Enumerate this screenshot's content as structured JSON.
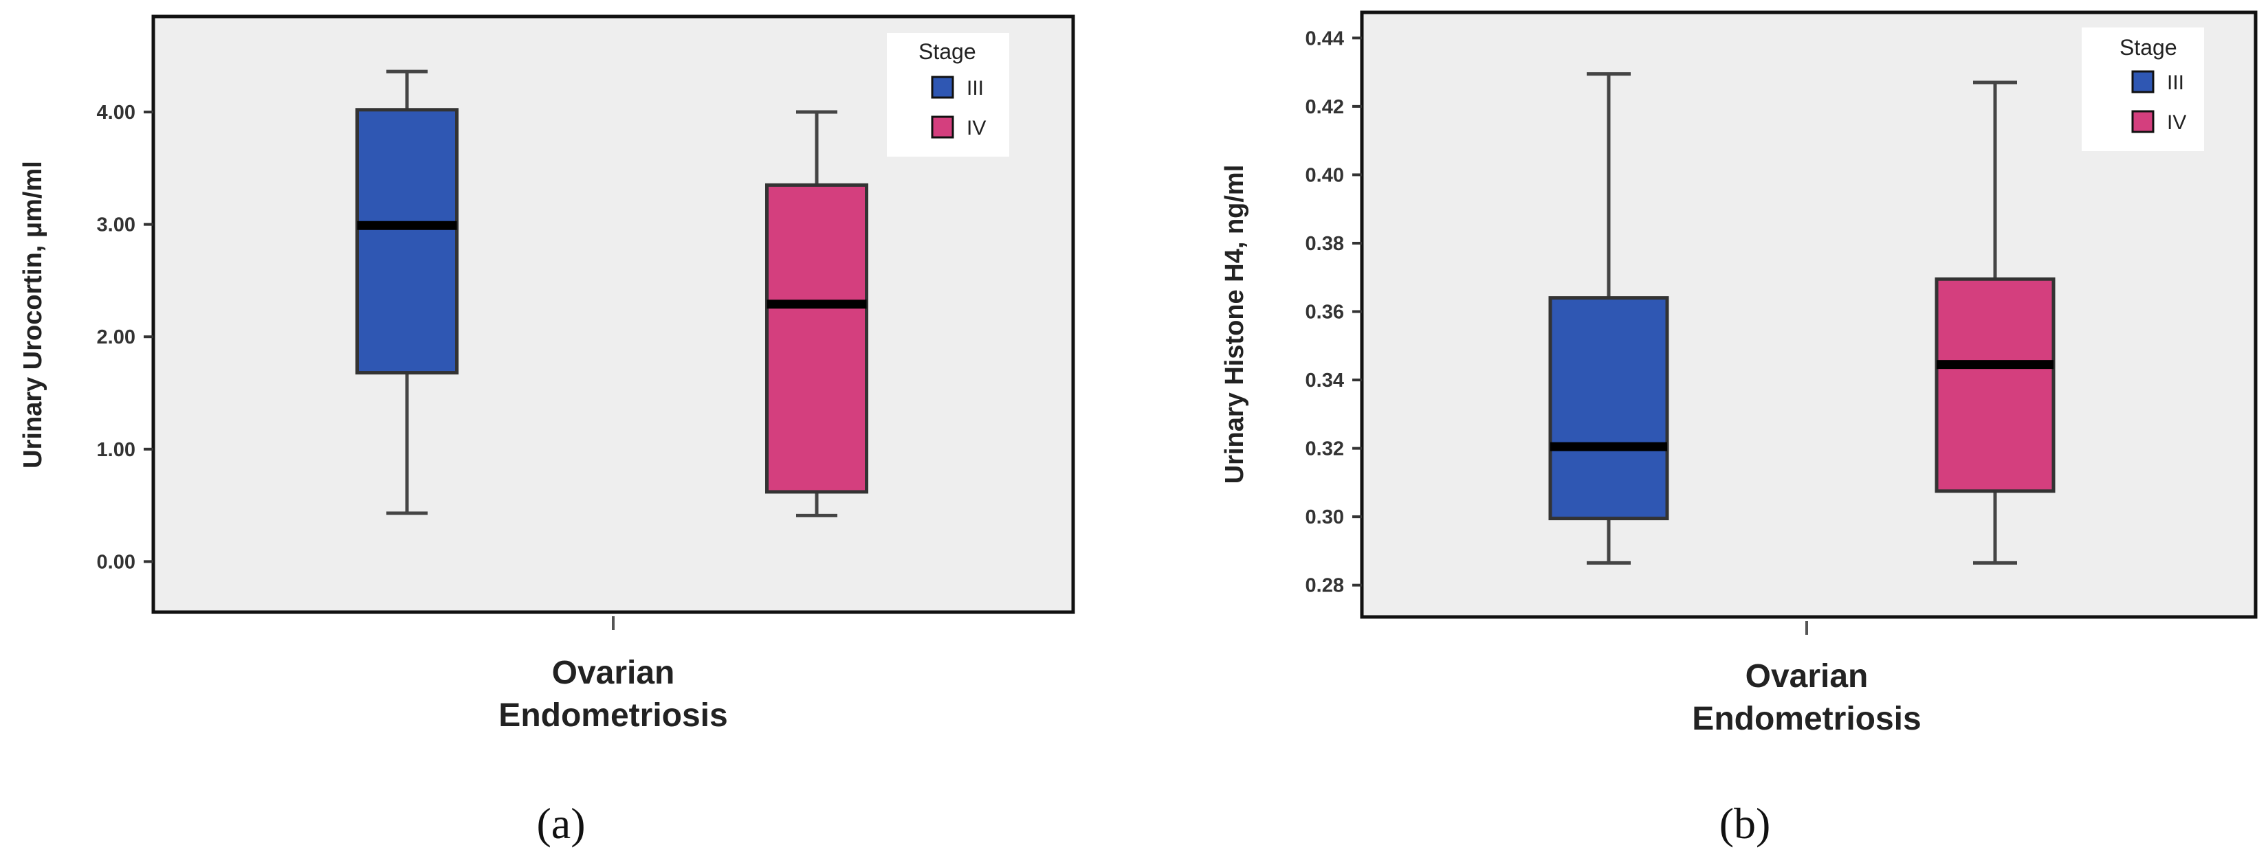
{
  "chart_data": [
    {
      "type": "box",
      "panel_label": "(a)",
      "ylabel": "Urinary Urocortin, μm/ml",
      "xlabel_lines": [
        "Ovarian",
        "Endometriosis"
      ],
      "ylim": [
        -0.45,
        4.85
      ],
      "yticks": [
        0,
        1,
        2,
        3,
        4
      ],
      "ytick_labels": [
        "0.00",
        "1.00",
        "2.00",
        "3.00",
        "4.00"
      ],
      "legend": {
        "title": "Stage",
        "position": "top-right",
        "entries": [
          "III",
          "IV"
        ]
      },
      "series": [
        {
          "name": "III",
          "color": "#2f57b3",
          "whisker_low": 0.43,
          "q1": 1.68,
          "median": 2.99,
          "q3": 4.02,
          "whisker_high": 4.36
        },
        {
          "name": "IV",
          "color": "#d43f7e",
          "whisker_low": 0.41,
          "q1": 0.62,
          "median": 2.29,
          "q3": 3.35,
          "whisker_high": 4.0
        }
      ],
      "grid": false
    },
    {
      "type": "box",
      "panel_label": "(b)",
      "ylabel": "Urinary Histone H4, ng/ml",
      "xlabel_lines": [
        "Ovarian",
        "Endometriosis"
      ],
      "ylim": [
        0.2707,
        0.4475
      ],
      "yticks": [
        0.28,
        0.3,
        0.32,
        0.34,
        0.36,
        0.38,
        0.4,
        0.42,
        0.44
      ],
      "ytick_labels": [
        "0.28",
        "0.30",
        "0.32",
        "0.34",
        "0.36",
        "0.38",
        "0.40",
        "0.42",
        "0.44"
      ],
      "legend": {
        "title": "Stage",
        "position": "top-right",
        "entries": [
          "III",
          "IV"
        ]
      },
      "series": [
        {
          "name": "III",
          "color": "#2f57b3",
          "whisker_low": 0.2865,
          "q1": 0.2995,
          "median": 0.3205,
          "q3": 0.364,
          "whisker_high": 0.4295
        },
        {
          "name": "IV",
          "color": "#d43f7e",
          "whisker_low": 0.2865,
          "q1": 0.3075,
          "median": 0.3445,
          "q3": 0.3695,
          "whisker_high": 0.427
        }
      ],
      "grid": false
    }
  ]
}
